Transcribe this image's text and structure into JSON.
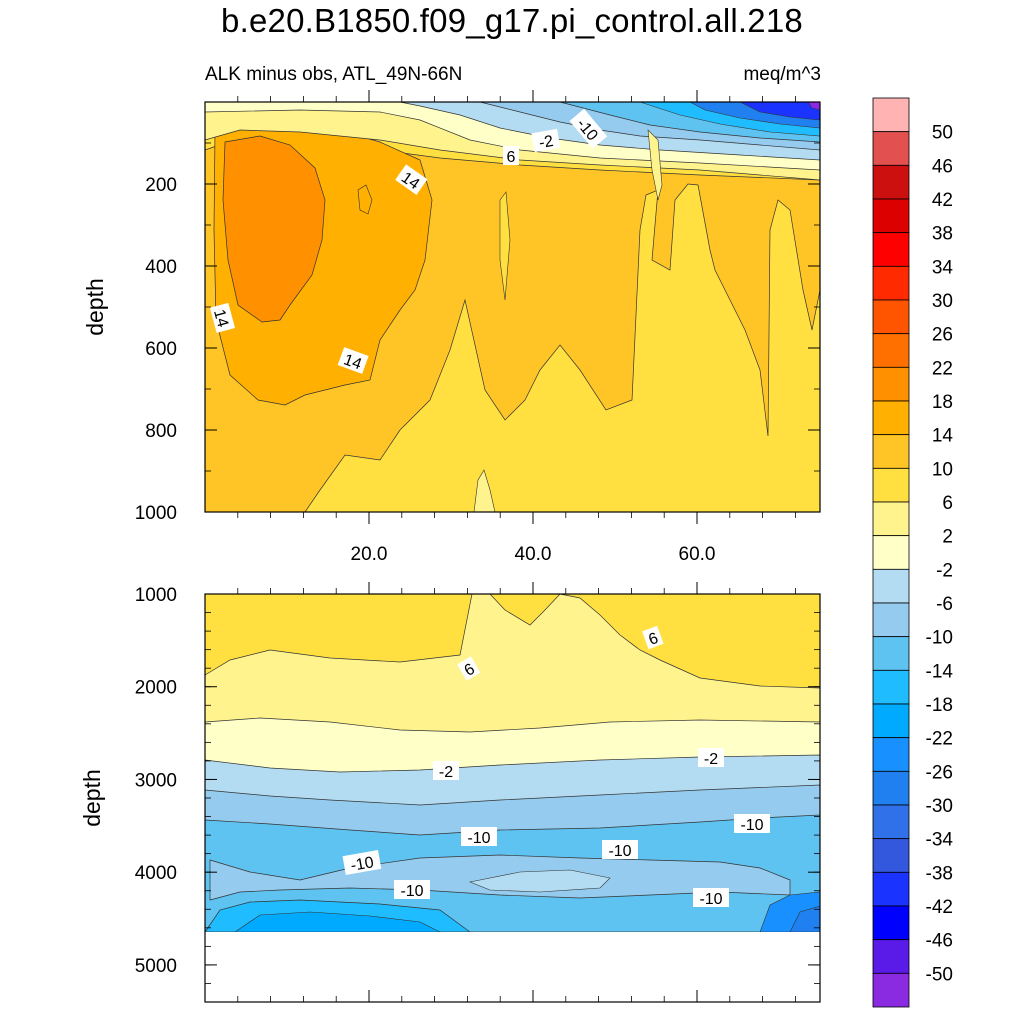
{
  "chart_data": {
    "type": "contour",
    "title": "b.e20.B1850.f09_g17.pi_control.all.218",
    "subtitle_left": "ALK minus obs, ATL_49N-66N",
    "subtitle_right": "meq/m^3",
    "panels": [
      {
        "name": "upper",
        "ylabel": "depth",
        "ylim": [
          1000,
          0
        ],
        "xlim": [
          0,
          75
        ],
        "yticks": [
          "200",
          "400",
          "600",
          "800",
          "1000"
        ],
        "xticks": [
          "20.0",
          "40.0",
          "60.0"
        ],
        "contour_labels": [
          "14",
          "14",
          "14",
          "6",
          "-2",
          "-10"
        ]
      },
      {
        "name": "lower",
        "ylabel": "depth",
        "ylim": [
          5400,
          1000
        ],
        "xlim": [
          0,
          75
        ],
        "yticks": [
          "1000",
          "2000",
          "3000",
          "4000",
          "5000"
        ],
        "contour_labels": [
          "6",
          "6",
          "-2",
          "-2",
          "-10",
          "-10",
          "-10",
          "-10",
          "-10",
          "-10"
        ]
      }
    ],
    "colorbar": {
      "levels": [
        "50",
        "46",
        "42",
        "38",
        "34",
        "30",
        "26",
        "22",
        "18",
        "14",
        "10",
        "6",
        "2",
        "-2",
        "-6",
        "-10",
        "-14",
        "-18",
        "-22",
        "-26",
        "-30",
        "-34",
        "-38",
        "-42",
        "-46",
        "-50"
      ],
      "colors": [
        "#ffb3b3",
        "#e25050",
        "#cc1010",
        "#dd0000",
        "#ff0000",
        "#ff2a00",
        "#ff5500",
        "#ff7000",
        "#ff9000",
        "#ffb000",
        "#ffc526",
        "#ffe040",
        "#fff38d",
        "#ffffc8",
        "#b3dcf3",
        "#94cbee",
        "#5ec3f0",
        "#1fbcff",
        "#00aaff",
        "#1990ff",
        "#2080f0",
        "#3070e8",
        "#3358dd",
        "#1a33ff",
        "#0000ff",
        "#5a1ae8",
        "#8a2be2"
      ]
    }
  }
}
